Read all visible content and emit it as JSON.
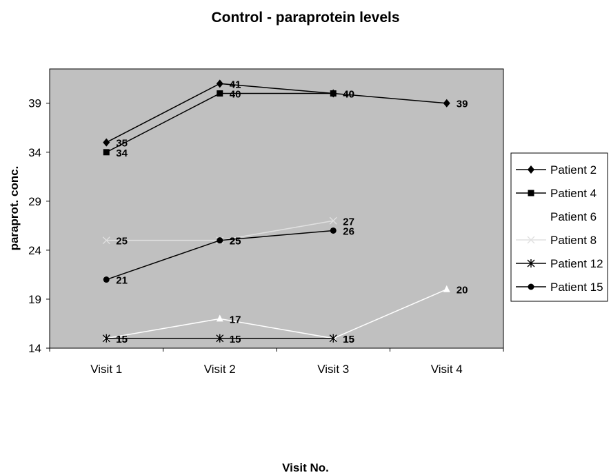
{
  "chart_data": {
    "type": "line",
    "title": "Control - paraprotein levels",
    "xlabel": "Visit No.",
    "ylabel": "paraprot. conc.",
    "categories": [
      "Visit 1",
      "Visit 2",
      "Visit 3",
      "Visit 4"
    ],
    "yticks": [
      14,
      19,
      24,
      29,
      34,
      39
    ],
    "ylim": [
      14,
      42.5
    ],
    "grid": false,
    "legend_position": "right",
    "plot_background": "#c0c0c0",
    "series": [
      {
        "name": "Patient 2",
        "values": [
          35,
          41,
          40,
          39
        ],
        "color": "#000000",
        "marker": "diamond"
      },
      {
        "name": "Patient 4",
        "values": [
          34,
          40,
          40,
          null
        ],
        "color": "#000000",
        "marker": "square"
      },
      {
        "name": "Patient 6",
        "values": [
          15,
          17,
          15,
          20
        ],
        "color": "#ffffff",
        "marker": "triangle"
      },
      {
        "name": "Patient 8",
        "values": [
          25,
          25,
          27,
          null
        ],
        "color": "#e0e0e0",
        "marker": "x"
      },
      {
        "name": "Patient 12",
        "values": [
          15,
          15,
          15,
          null
        ],
        "color": "#000000",
        "marker": "star"
      },
      {
        "name": "Patient 15",
        "values": [
          21,
          25,
          26,
          null
        ],
        "color": "#000000",
        "marker": "circle"
      }
    ]
  }
}
